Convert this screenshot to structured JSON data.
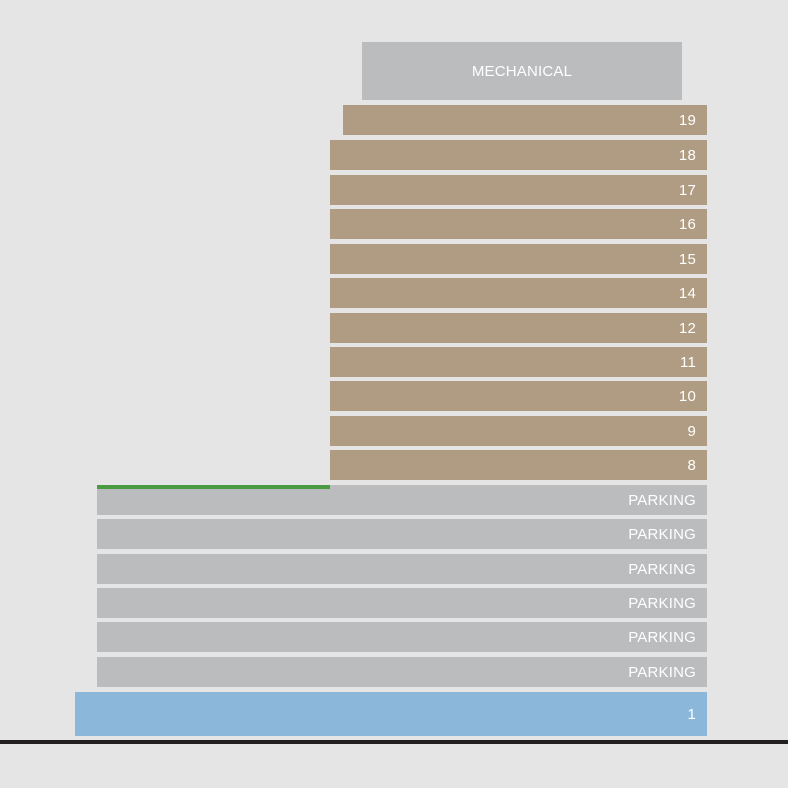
{
  "diagram": {
    "mechanical": {
      "label": "MECHANICAL"
    },
    "residential_floors": [
      {
        "label": "19"
      },
      {
        "label": "18"
      },
      {
        "label": "17"
      },
      {
        "label": "16"
      },
      {
        "label": "15"
      },
      {
        "label": "14"
      },
      {
        "label": "12"
      },
      {
        "label": "11"
      },
      {
        "label": "10"
      },
      {
        "label": "9"
      },
      {
        "label": "8"
      }
    ],
    "parking_floors": [
      {
        "label": "PARKING"
      },
      {
        "label": "PARKING"
      },
      {
        "label": "PARKING"
      },
      {
        "label": "PARKING"
      },
      {
        "label": "PARKING"
      },
      {
        "label": "PARKING"
      }
    ],
    "ground_floor": {
      "label": "1"
    },
    "colors": {
      "background": "#e5e5e5",
      "residential": "#b09c82",
      "parking": "#bbbcbe",
      "ground": "#8bb8da",
      "green_roof": "#4a9b42",
      "ground_line": "#231f20",
      "label_text": "#ffffff"
    }
  }
}
